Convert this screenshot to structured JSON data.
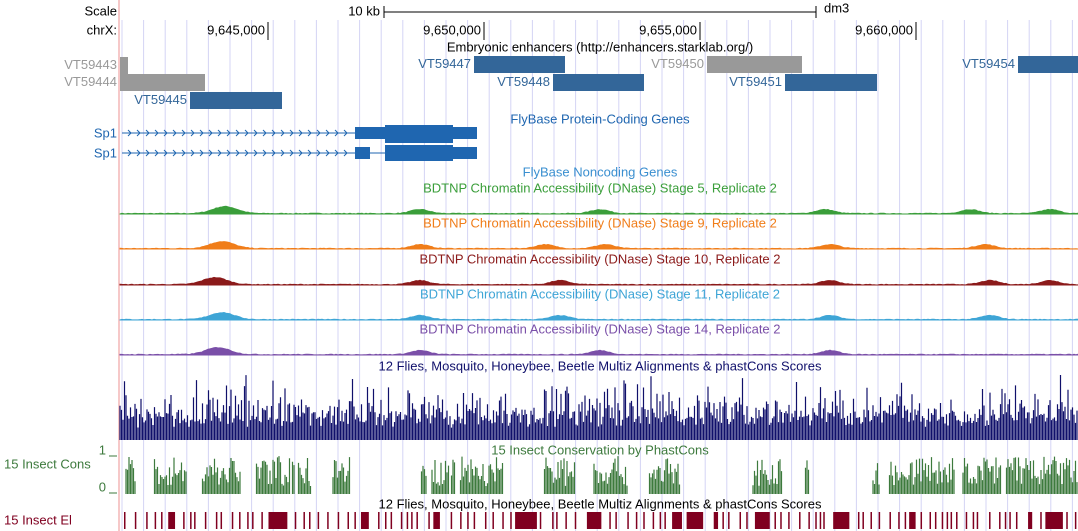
{
  "ruler": {
    "scale_label": "Scale",
    "chrom_label": "chrX:",
    "scale_bar": "10 kb",
    "assembly": "dm3",
    "positions": [
      "9,645,000",
      "9,650,000",
      "9,655,000",
      "9,660,000"
    ]
  },
  "enhancers": {
    "title": "Embryonic enhancers (http://enhancers.starklab.org/)",
    "items": [
      {
        "label": "VT59443",
        "color": "#999999"
      },
      {
        "label": "VT59444",
        "color": "#999999"
      },
      {
        "label": "VT59445",
        "color": "#336699"
      },
      {
        "label": "VT59447",
        "color": "#336699"
      },
      {
        "label": "VT59448",
        "color": "#336699"
      },
      {
        "label": "VT59450",
        "color": "#999999"
      },
      {
        "label": "VT59451",
        "color": "#336699"
      },
      {
        "label": "VT59454",
        "color": "#336699"
      }
    ]
  },
  "genes": {
    "title": "FlyBase Protein-Coding Genes",
    "color": "#1f66b0",
    "items": [
      "Sp1",
      "Sp1"
    ]
  },
  "noncoding": {
    "title": "FlyBase Noncoding Genes",
    "color": "#3a8fd0"
  },
  "dnase": [
    {
      "title": "BDTNP Chromatin Accessibility (DNase) Stage 5, Replicate 2",
      "color": "#3a9e3a"
    },
    {
      "title": "BDTNP Chromatin Accessibility (DNase) Stage 9, Replicate 2",
      "color": "#f07d19"
    },
    {
      "title": "BDTNP Chromatin Accessibility (DNase) Stage 10, Replicate 2",
      "color": "#8b1a1a"
    },
    {
      "title": "BDTNP Chromatin Accessibility (DNase) Stage 11, Replicate 2",
      "color": "#3ea5d6"
    },
    {
      "title": "BDTNP Chromatin Accessibility (DNase) Stage 14, Replicate 2",
      "color": "#7a4fa8"
    }
  ],
  "multiz": {
    "title": "12 Flies, Mosquito, Honeybee, Beetle Multiz Alignments & phastCons Scores",
    "color": "#10106b"
  },
  "phastcons": {
    "title": "15 Insect Conservation by PhastCons",
    "label": "15 Insect Cons",
    "axis_max": "1",
    "axis_min": "0",
    "color": "#3d7a3d"
  },
  "elements": {
    "title": "12 Flies, Mosquito, Honeybee, Beetle Multiz Alignments & phastCons Scores",
    "label": "15 Insect El",
    "color": "#800020"
  }
}
